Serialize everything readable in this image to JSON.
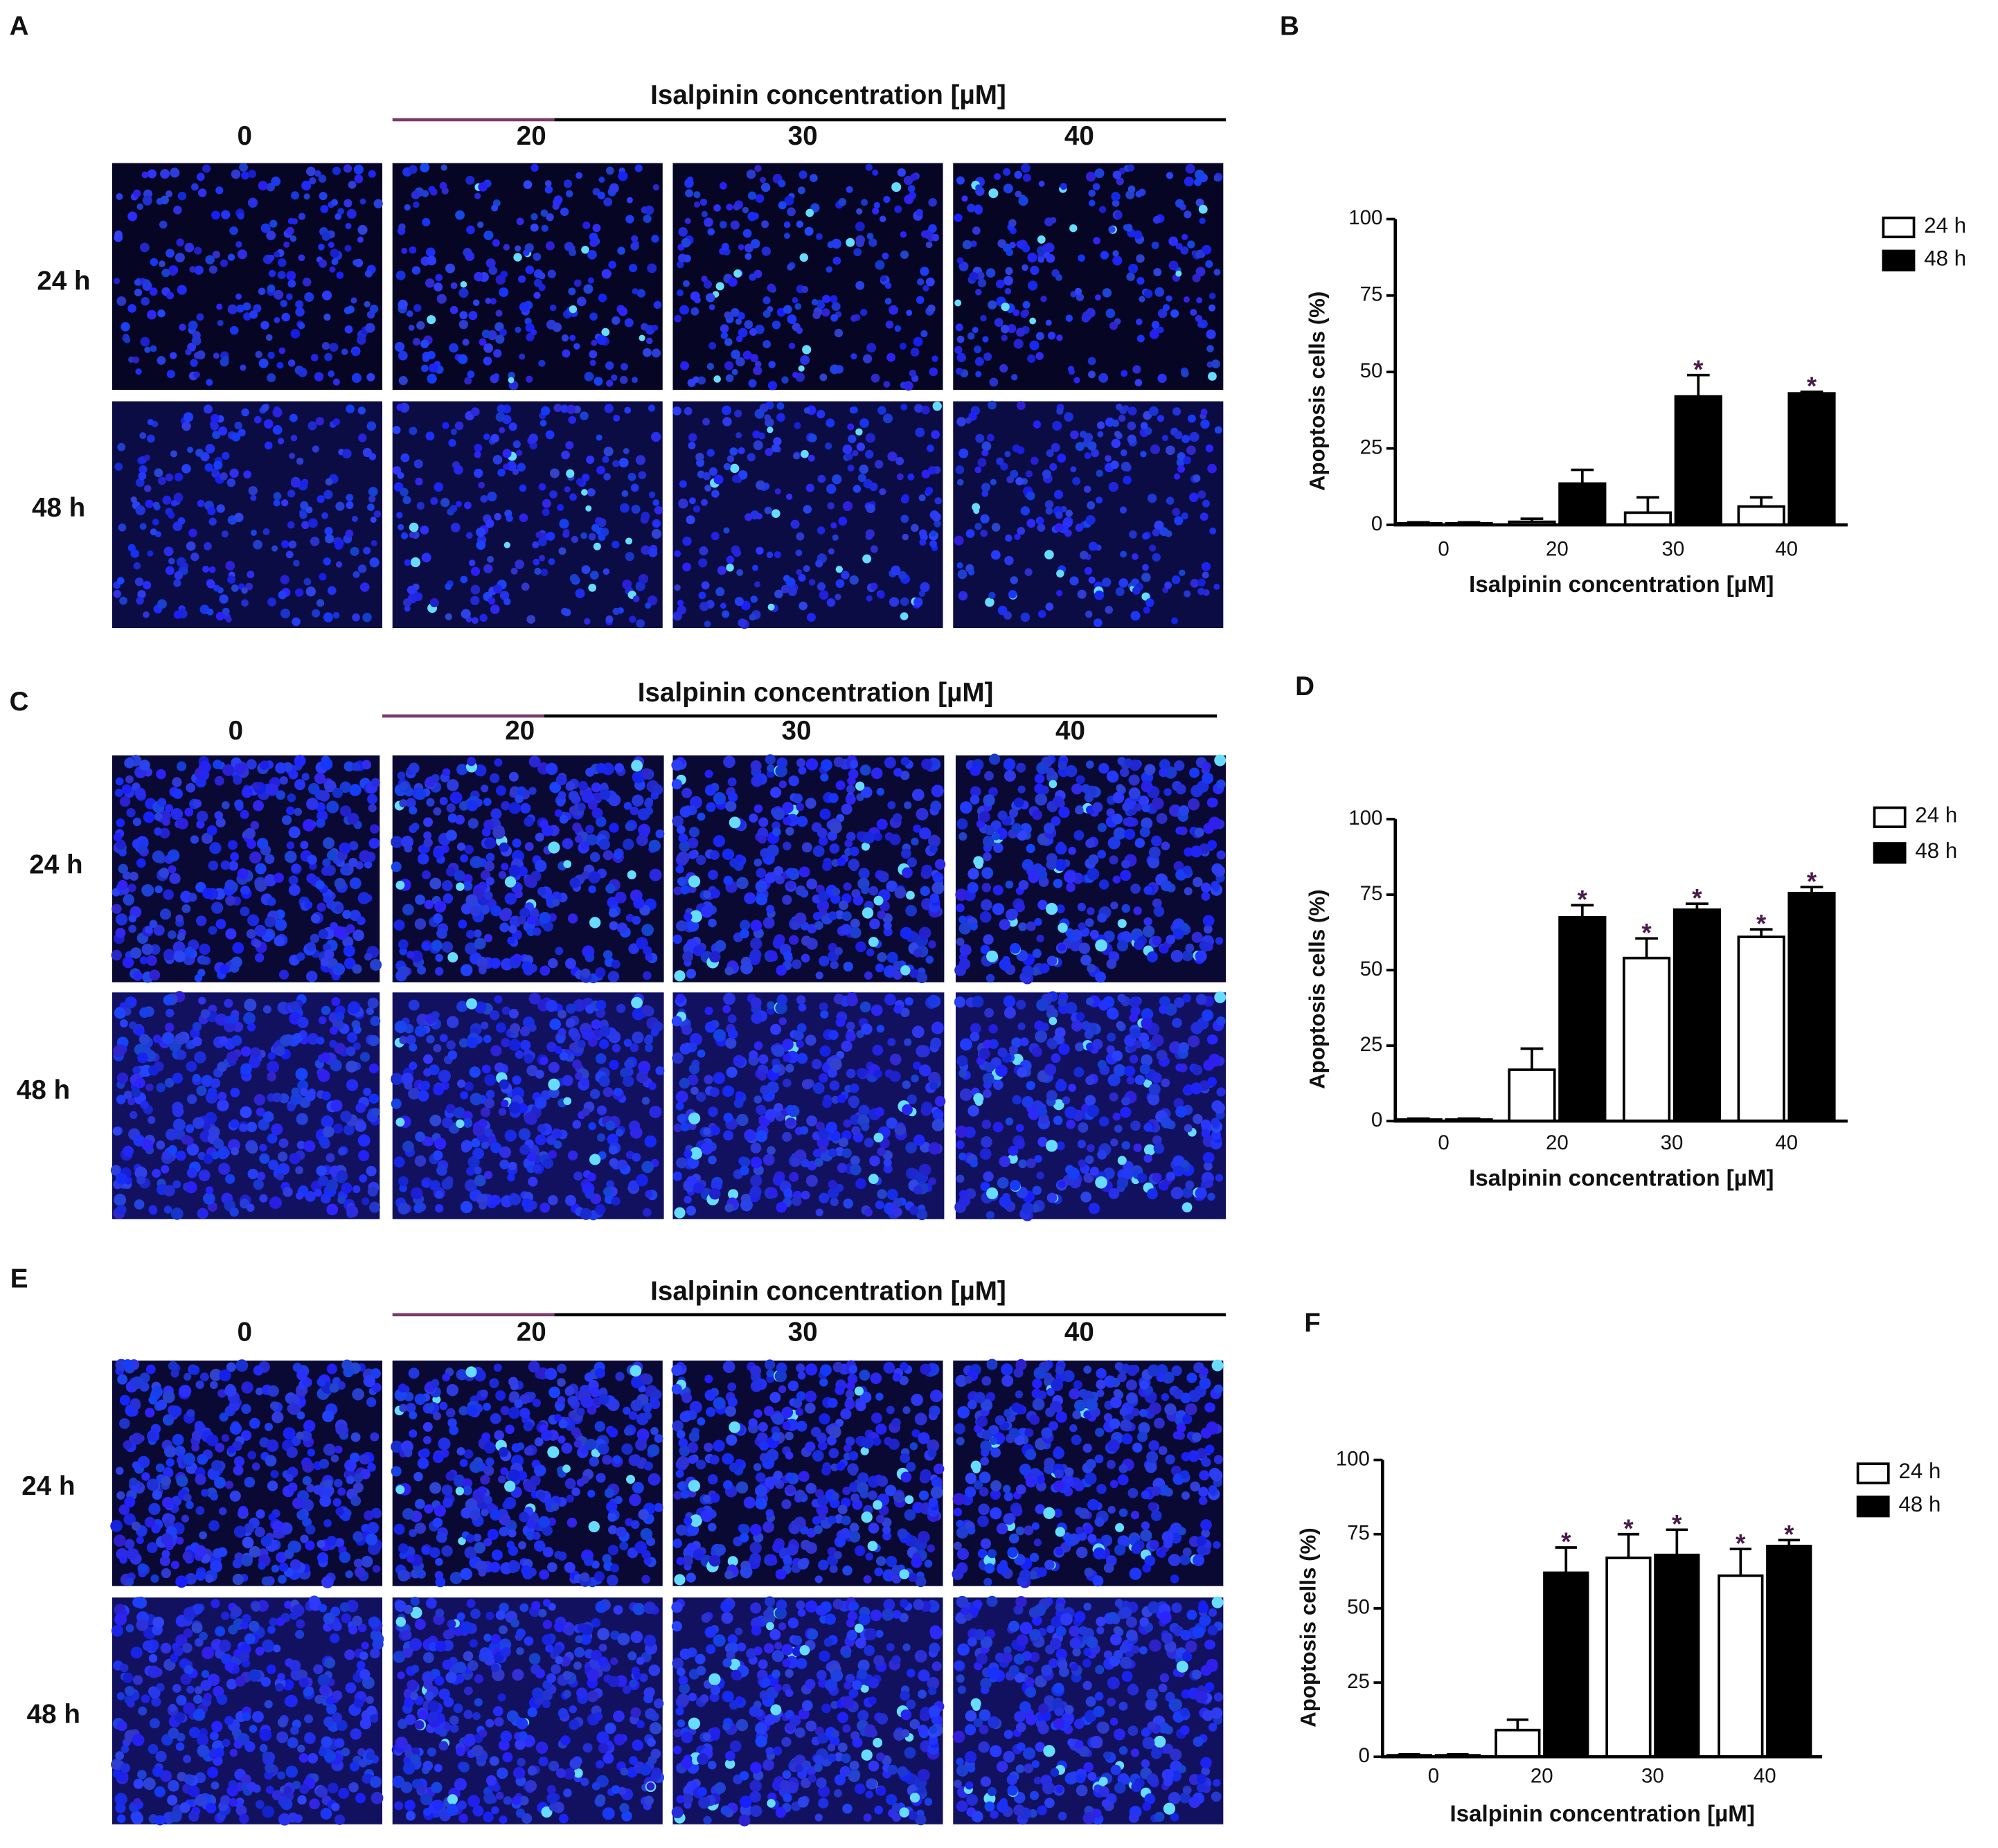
{
  "image_panels": [
    {
      "label": "A",
      "header": "Isalpinin concentration [µM]",
      "columns": [
        "0",
        "20",
        "30",
        "40"
      ],
      "rows": [
        "24 h",
        "48 h"
      ]
    },
    {
      "label": "C",
      "header": "Isalpinin concentration [µM]",
      "columns": [
        "0",
        "20",
        "30",
        "40"
      ],
      "rows": [
        "24 h",
        "48 h"
      ]
    },
    {
      "label": "E",
      "header": "Isalpinin concentration [µM]",
      "columns": [
        "0",
        "20",
        "30",
        "40"
      ],
      "rows": [
        "24 h",
        "48 h"
      ]
    }
  ],
  "chart_data": [
    {
      "type": "bar",
      "panel_label": "B",
      "ylabel": "Apoptosis cells (%)",
      "xlabel": "Isalpinin concentration [µM]",
      "categories": [
        "0",
        "20",
        "30",
        "40"
      ],
      "series": [
        {
          "name": "24 h",
          "color": "#ffffff",
          "values": [
            0.5,
            1,
            4,
            6
          ],
          "errors": [
            0.3,
            1,
            5,
            3
          ],
          "significant": [
            false,
            false,
            false,
            false
          ]
        },
        {
          "name": "48 h",
          "color": "#000000",
          "values": [
            0.5,
            13.5,
            42,
            43
          ],
          "errors": [
            0.3,
            4.5,
            7,
            0.5
          ],
          "significant": [
            false,
            false,
            true,
            true
          ]
        }
      ],
      "significance_mark": "*",
      "ylim": [
        0,
        100
      ],
      "yticks": [
        0,
        25,
        50,
        75,
        100
      ],
      "legend": "right"
    },
    {
      "type": "bar",
      "panel_label": "D",
      "ylabel": "Apoptosis cells (%)",
      "xlabel": "Isalpinin concentration [µM]",
      "categories": [
        "0",
        "20",
        "30",
        "40"
      ],
      "series": [
        {
          "name": "24 h",
          "color": "#ffffff",
          "values": [
            0.5,
            17,
            54,
            61
          ],
          "errors": [
            0.3,
            7,
            6.5,
            2.5
          ],
          "significant": [
            false,
            false,
            true,
            true
          ]
        },
        {
          "name": "48 h",
          "color": "#000000",
          "values": [
            0.5,
            67.5,
            70,
            75.5
          ],
          "errors": [
            0.3,
            4,
            2,
            2
          ],
          "significant": [
            false,
            true,
            true,
            true
          ]
        }
      ],
      "significance_mark": "*",
      "ylim": [
        0,
        100
      ],
      "yticks": [
        0,
        25,
        50,
        75,
        100
      ],
      "legend": "right"
    },
    {
      "type": "bar",
      "panel_label": "F",
      "ylabel": "Apoptosis cells (%)",
      "xlabel": "Isalpinin concentration [µM]",
      "categories": [
        "0",
        "20",
        "30",
        "40"
      ],
      "series": [
        {
          "name": "24 h",
          "color": "#ffffff",
          "values": [
            0.5,
            9,
            67,
            61
          ],
          "errors": [
            0.3,
            3.5,
            8,
            9
          ],
          "significant": [
            false,
            false,
            true,
            true
          ]
        },
        {
          "name": "48 h",
          "color": "#000000",
          "values": [
            0.5,
            62,
            68,
            71
          ],
          "errors": [
            0.3,
            8.5,
            8.5,
            2
          ],
          "significant": [
            false,
            true,
            true,
            true
          ]
        }
      ],
      "significance_mark": "*",
      "ylim": [
        0,
        100
      ],
      "yticks": [
        0,
        25,
        50,
        75,
        100
      ],
      "legend": "right"
    }
  ]
}
